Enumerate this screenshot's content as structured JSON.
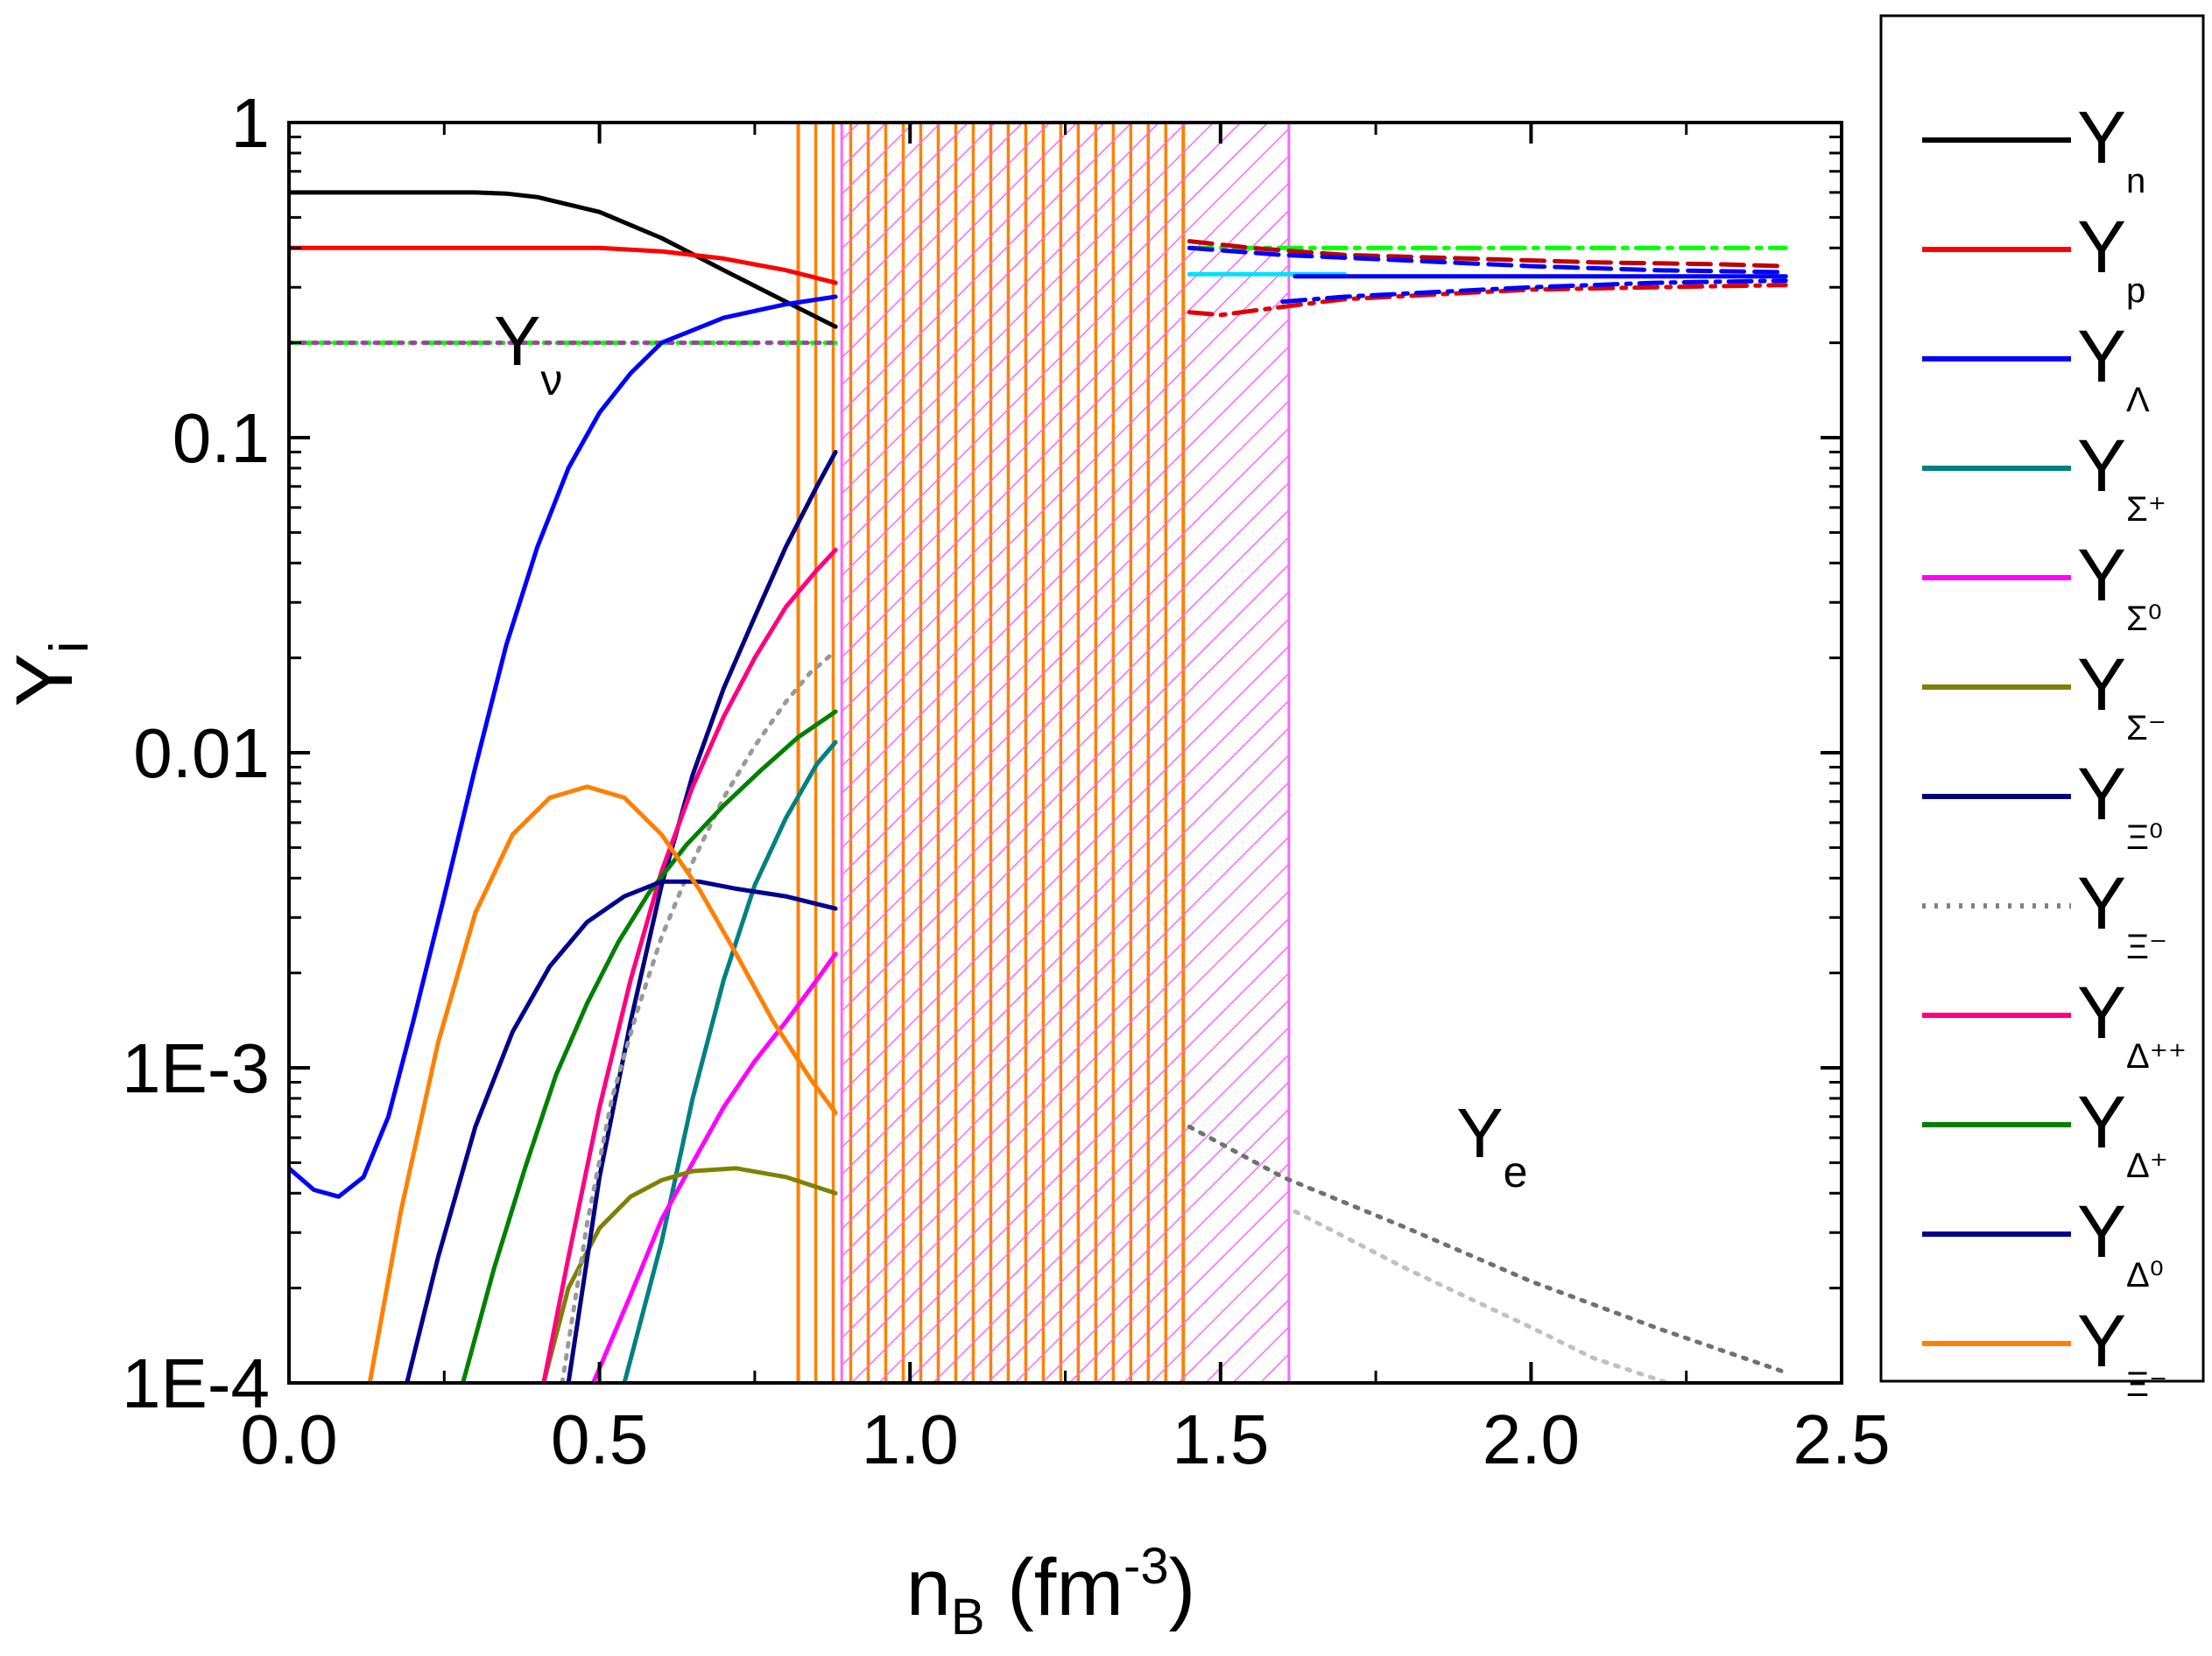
{
  "chart_data": {
    "type": "line",
    "title": "",
    "xlabel": {
      "main": "n",
      "sub": "B",
      "units": " (fm",
      "exp": "-3",
      "close": ")"
    },
    "ylabel": {
      "main": "Y",
      "sub": "i"
    },
    "xlim": [
      0.0,
      2.5
    ],
    "ylim": [
      0.0001,
      1
    ],
    "yscale": "log",
    "x_ticks": [
      {
        "value": 0.0,
        "label": "0.0"
      },
      {
        "value": 0.5,
        "label": "0.5"
      },
      {
        "value": 1.0,
        "label": "1.0"
      },
      {
        "value": 1.5,
        "label": "1.5"
      },
      {
        "value": 2.0,
        "label": "2.0"
      },
      {
        "value": 2.5,
        "label": "2.5"
      }
    ],
    "y_ticks": [
      {
        "value": 1,
        "label": "1"
      },
      {
        "value": 0.1,
        "label": "0.1"
      },
      {
        "value": 0.01,
        "label": "0.01"
      },
      {
        "value": 0.001,
        "label": "1E-3"
      },
      {
        "value": 0.0001,
        "label": "1E-4"
      }
    ],
    "legend_position": "right-outside",
    "legend": [
      {
        "main": "Y",
        "sub": "n",
        "color": "#000000",
        "dash": "solid"
      },
      {
        "main": "Y",
        "sub": "p",
        "color": "#ff0000",
        "dash": "solid"
      },
      {
        "main": "Y",
        "sub": "Λ",
        "color": "#0000ff",
        "dash": "solid"
      },
      {
        "main": "Y",
        "sub": "Σ⁺",
        "color": "#008080",
        "dash": "solid"
      },
      {
        "main": "Y",
        "sub": "Σ⁰",
        "color": "#ff00ff",
        "dash": "solid"
      },
      {
        "main": "Y",
        "sub": "Σ⁻",
        "color": "#808000",
        "dash": "solid"
      },
      {
        "main": "Y",
        "sub": "Ξ⁰",
        "color": "#000080",
        "dash": "solid"
      },
      {
        "main": "Y",
        "sub": "Ξ⁻",
        "color": "#808080",
        "dash": "dot"
      },
      {
        "main": "Y",
        "sub": "Δ⁺⁺",
        "color": "#ff0080",
        "dash": "solid"
      },
      {
        "main": "Y",
        "sub": "Δ⁺",
        "color": "#008000",
        "dash": "solid"
      },
      {
        "main": "Y",
        "sub": "Δ⁰",
        "color": "#000090",
        "dash": "solid"
      },
      {
        "main": "Y",
        "sub": "Ξ⁻",
        "color": "#ff8000",
        "dash": "solid"
      }
    ],
    "annotations": [
      {
        "main": "Y",
        "sub": "ν",
        "x": 0.33,
        "y": 0.17
      },
      {
        "main": "Y",
        "sub": "e",
        "x": 1.88,
        "y": 0.00052
      }
    ],
    "regions": [
      {
        "name": "mixed-phase-orange",
        "x0": 0.82,
        "x1": 1.44,
        "y0": 0.0001,
        "y1": 1,
        "color": "#ff8000",
        "pattern": "vertical-bars"
      },
      {
        "name": "mixed-phase-magenta",
        "x0": 0.89,
        "x1": 1.61,
        "y0": 0.0001,
        "y1": 1,
        "color": "#ff66ff",
        "pattern": "diagonal-hatch"
      }
    ],
    "series": [
      {
        "name": "Y_n",
        "color": "#000000",
        "dash": "solid",
        "x": [
          0.0,
          0.1,
          0.2,
          0.3,
          0.35,
          0.4,
          0.5,
          0.6,
          0.7,
          0.8,
          0.88
        ],
        "y": [
          0.6,
          0.6,
          0.6,
          0.6,
          0.595,
          0.58,
          0.52,
          0.43,
          0.34,
          0.27,
          0.225
        ]
      },
      {
        "name": "Y_p",
        "color": "#ff0000",
        "dash": "solid",
        "x": [
          0.0,
          0.2,
          0.4,
          0.5,
          0.6,
          0.7,
          0.8,
          0.88
        ],
        "y": [
          0.4,
          0.4,
          0.4,
          0.4,
          0.39,
          0.37,
          0.34,
          0.31
        ]
      },
      {
        "name": "Y_nu",
        "color": "#00ff00",
        "dash": "dashdot",
        "x": [
          0.0,
          0.88
        ],
        "y": [
          0.2,
          0.2
        ]
      },
      {
        "name": "Y_nu_purple",
        "color": "#a040a0",
        "dash": "dot",
        "x": [
          0.0,
          0.88
        ],
        "y": [
          0.2,
          0.2
        ]
      },
      {
        "name": "Y_Lambda",
        "color": "#0000ff",
        "dash": "solid",
        "x": [
          0.0,
          0.04,
          0.08,
          0.12,
          0.16,
          0.2,
          0.25,
          0.3,
          0.35,
          0.4,
          0.45,
          0.5,
          0.55,
          0.6,
          0.7,
          0.8,
          0.88
        ],
        "y": [
          0.00048,
          0.00041,
          0.00039,
          0.00045,
          0.0007,
          0.0014,
          0.0035,
          0.009,
          0.022,
          0.045,
          0.08,
          0.12,
          0.16,
          0.2,
          0.24,
          0.265,
          0.28
        ]
      },
      {
        "name": "Y_Sigma+",
        "color": "#008080",
        "dash": "solid",
        "x": [
          0.54,
          0.6,
          0.65,
          0.7,
          0.75,
          0.8,
          0.85,
          0.88
        ],
        "y": [
          0.0001,
          0.00028,
          0.0008,
          0.0019,
          0.0038,
          0.0062,
          0.0092,
          0.0108
        ]
      },
      {
        "name": "Y_Sigma0",
        "color": "#ff00ff",
        "dash": "solid",
        "x": [
          0.49,
          0.55,
          0.6,
          0.65,
          0.7,
          0.75,
          0.8,
          0.85,
          0.88
        ],
        "y": [
          0.0001,
          0.00019,
          0.00033,
          0.0005,
          0.00075,
          0.00105,
          0.0014,
          0.0019,
          0.0023
        ]
      },
      {
        "name": "Y_Sigma-",
        "color": "#808000",
        "dash": "solid",
        "x": [
          0.41,
          0.45,
          0.5,
          0.55,
          0.6,
          0.65,
          0.72,
          0.8,
          0.88
        ],
        "y": [
          0.0001,
          0.0002,
          0.00031,
          0.00039,
          0.00044,
          0.00047,
          0.00048,
          0.00045,
          0.0004
        ]
      },
      {
        "name": "Y_Xi0",
        "color": "#000080",
        "dash": "solid",
        "x": [
          0.45,
          0.5,
          0.55,
          0.6,
          0.65,
          0.7,
          0.75,
          0.8,
          0.85,
          0.88
        ],
        "y": [
          0.0001,
          0.00045,
          0.0014,
          0.0038,
          0.0085,
          0.016,
          0.027,
          0.045,
          0.07,
          0.09
        ]
      },
      {
        "name": "Y_Xi-dotted",
        "color": "#999999",
        "dash": "dot",
        "x": [
          0.44,
          0.48,
          0.52,
          0.56,
          0.6,
          0.65,
          0.7,
          0.75,
          0.8,
          0.84,
          0.88
        ],
        "y": [
          0.0001,
          0.00032,
          0.0008,
          0.0015,
          0.0026,
          0.0045,
          0.0072,
          0.0105,
          0.0145,
          0.018,
          0.021
        ]
      },
      {
        "name": "Y_Delta++",
        "color": "#ff0080",
        "dash": "solid",
        "x": [
          0.41,
          0.45,
          0.5,
          0.55,
          0.6,
          0.65,
          0.7,
          0.75,
          0.8,
          0.85,
          0.88
        ],
        "y": [
          0.0001,
          0.00025,
          0.00075,
          0.0019,
          0.0042,
          0.0078,
          0.013,
          0.02,
          0.029,
          0.038,
          0.044
        ]
      },
      {
        "name": "Y_Delta+",
        "color": "#008000",
        "dash": "solid",
        "x": [
          0.28,
          0.33,
          0.38,
          0.43,
          0.48,
          0.53,
          0.58,
          0.64,
          0.7,
          0.76,
          0.82,
          0.88
        ],
        "y": [
          0.0001,
          0.00023,
          0.00048,
          0.00095,
          0.0016,
          0.0025,
          0.0036,
          0.0051,
          0.0068,
          0.0088,
          0.0112,
          0.0135
        ]
      },
      {
        "name": "Y_Delta0",
        "color": "#000090",
        "dash": "solid",
        "x": [
          0.19,
          0.24,
          0.3,
          0.36,
          0.42,
          0.48,
          0.54,
          0.6,
          0.66,
          0.72,
          0.8,
          0.88
        ],
        "y": [
          0.0001,
          0.00025,
          0.00065,
          0.0013,
          0.0021,
          0.0029,
          0.0035,
          0.0039,
          0.0039,
          0.0037,
          0.0035,
          0.0032
        ]
      },
      {
        "name": "Y_Xi-",
        "color": "#ff8000",
        "dash": "solid",
        "x": [
          0.13,
          0.18,
          0.24,
          0.3,
          0.36,
          0.42,
          0.48,
          0.54,
          0.6,
          0.66,
          0.72,
          0.78,
          0.84,
          0.88
        ],
        "y": [
          0.0001,
          0.00035,
          0.0012,
          0.0031,
          0.0055,
          0.0072,
          0.0078,
          0.0072,
          0.0055,
          0.0037,
          0.0023,
          0.0014,
          0.00092,
          0.00072
        ]
      },
      {
        "name": "hadronic-green",
        "color": "#00ff00",
        "dash": "dashdot",
        "x": [
          1.45,
          1.6,
          1.8,
          2.0,
          2.2,
          2.41
        ],
        "y": [
          0.4,
          0.4,
          0.4,
          0.4,
          0.4,
          0.4
        ]
      },
      {
        "name": "hadronic-darkred-dash",
        "color": "#c00000",
        "dash": "dash",
        "x": [
          1.45,
          1.55,
          1.7,
          1.9,
          2.1,
          2.3,
          2.41
        ],
        "y": [
          0.42,
          0.4,
          0.38,
          0.37,
          0.36,
          0.355,
          0.35
        ]
      },
      {
        "name": "hadronic-blue-dash",
        "color": "#0000ff",
        "dash": "dash",
        "x": [
          1.45,
          1.6,
          1.8,
          2.0,
          2.2,
          2.41
        ],
        "y": [
          0.4,
          0.38,
          0.365,
          0.35,
          0.34,
          0.335
        ]
      },
      {
        "name": "hadronic-cyan",
        "color": "#00e0ff",
        "dash": "solid",
        "x": [
          1.45,
          1.7
        ],
        "y": [
          0.33,
          0.33
        ]
      },
      {
        "name": "hadronic-blue-solid",
        "color": "#0000ff",
        "dash": "solid",
        "x": [
          1.62,
          1.8,
          2.0,
          2.2,
          2.41
        ],
        "y": [
          0.325,
          0.325,
          0.325,
          0.325,
          0.325
        ]
      },
      {
        "name": "hadronic-red-dashdot",
        "color": "#e00000",
        "dash": "dashdot",
        "x": [
          1.45,
          1.5,
          1.6,
          1.7,
          1.85,
          2.0,
          2.2,
          2.41
        ],
        "y": [
          0.25,
          0.245,
          0.26,
          0.275,
          0.285,
          0.295,
          0.3,
          0.305
        ]
      },
      {
        "name": "hadronic-blue-dashdot",
        "color": "#0000ff",
        "dash": "dashdot",
        "x": [
          1.6,
          1.7,
          1.85,
          2.0,
          2.2,
          2.41
        ],
        "y": [
          0.27,
          0.28,
          0.29,
          0.3,
          0.31,
          0.315
        ]
      },
      {
        "name": "Y_e-dark",
        "color": "#707070",
        "dash": "dot",
        "x": [
          1.45,
          1.6,
          1.8,
          2.0,
          2.2,
          2.41
        ],
        "y": [
          0.00065,
          0.00045,
          0.00031,
          0.00021,
          0.00015,
          0.000108
        ]
      },
      {
        "name": "Y_e-light",
        "color": "#c0c0c0",
        "dash": "dot",
        "x": [
          1.62,
          1.8,
          2.0,
          2.1,
          2.22
        ],
        "y": [
          0.00035,
          0.00023,
          0.00015,
          0.00012,
          0.0001
        ]
      }
    ]
  }
}
